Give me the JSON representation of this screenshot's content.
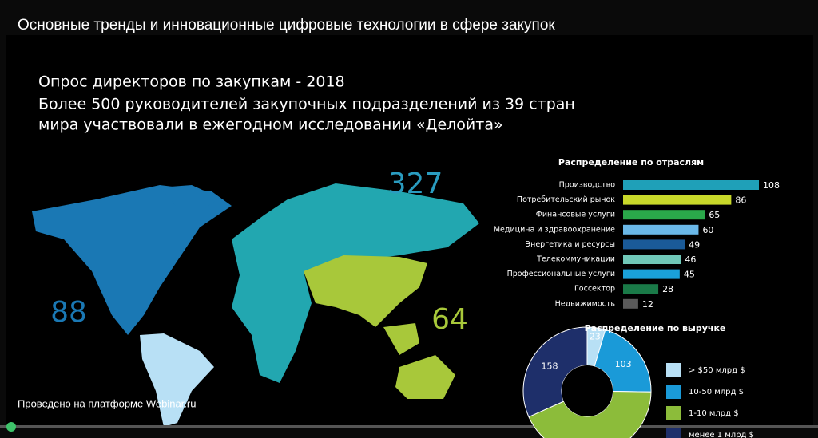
{
  "header": {
    "title": "Основные тренды и инновационные цифровые технологии в сфере закупок"
  },
  "slide": {
    "title": "Опрос директоров по закупкам - 2018",
    "subtitle_lines": [
      "Более 500 руководителей закупочных подразделений из 39 стран",
      "мира участвовали в ежегодном исследовании «Делойта»"
    ],
    "map_labels": [
      {
        "value": 327,
        "color": "#2a9cc0"
      },
      {
        "value": 88,
        "color": "#1a78b4"
      },
      {
        "value": 64,
        "color": "#a8c83a"
      }
    ],
    "industry_chart": {
      "title": "Распределение по отраслям",
      "categories": [
        "Производство",
        "Потребительский рынок",
        "Финансовые услуги",
        "Медицина и здравоохранение",
        "Энергетика и ресурсы",
        "Телекоммуникации",
        "Профессиональные услуги",
        "Госсектор",
        "Недвижимость"
      ],
      "values": [
        108,
        86,
        65,
        60,
        49,
        46,
        45,
        28,
        12
      ],
      "colors": [
        "#1fa0b8",
        "#c8d82a",
        "#2aa84a",
        "#6ab8e8",
        "#1a5a98",
        "#70c8b8",
        "#1aa0d8",
        "#1a7a48",
        "#5a5a5a"
      ]
    },
    "revenue_chart": {
      "title": "Распределение по выручке",
      "categories": [
        "> $50 млрд $",
        "10-50 млрд $",
        "1-10 млрд $",
        "менее 1 млрд $"
      ],
      "values": [
        23,
        103,
        215,
        158
      ],
      "colors": [
        "#b8e0f5",
        "#1a9ad8",
        "#8cbc3a",
        "#1e2f6a"
      ]
    }
  },
  "footer": {
    "text": "Проведено на платформе Webinar.ru"
  }
}
